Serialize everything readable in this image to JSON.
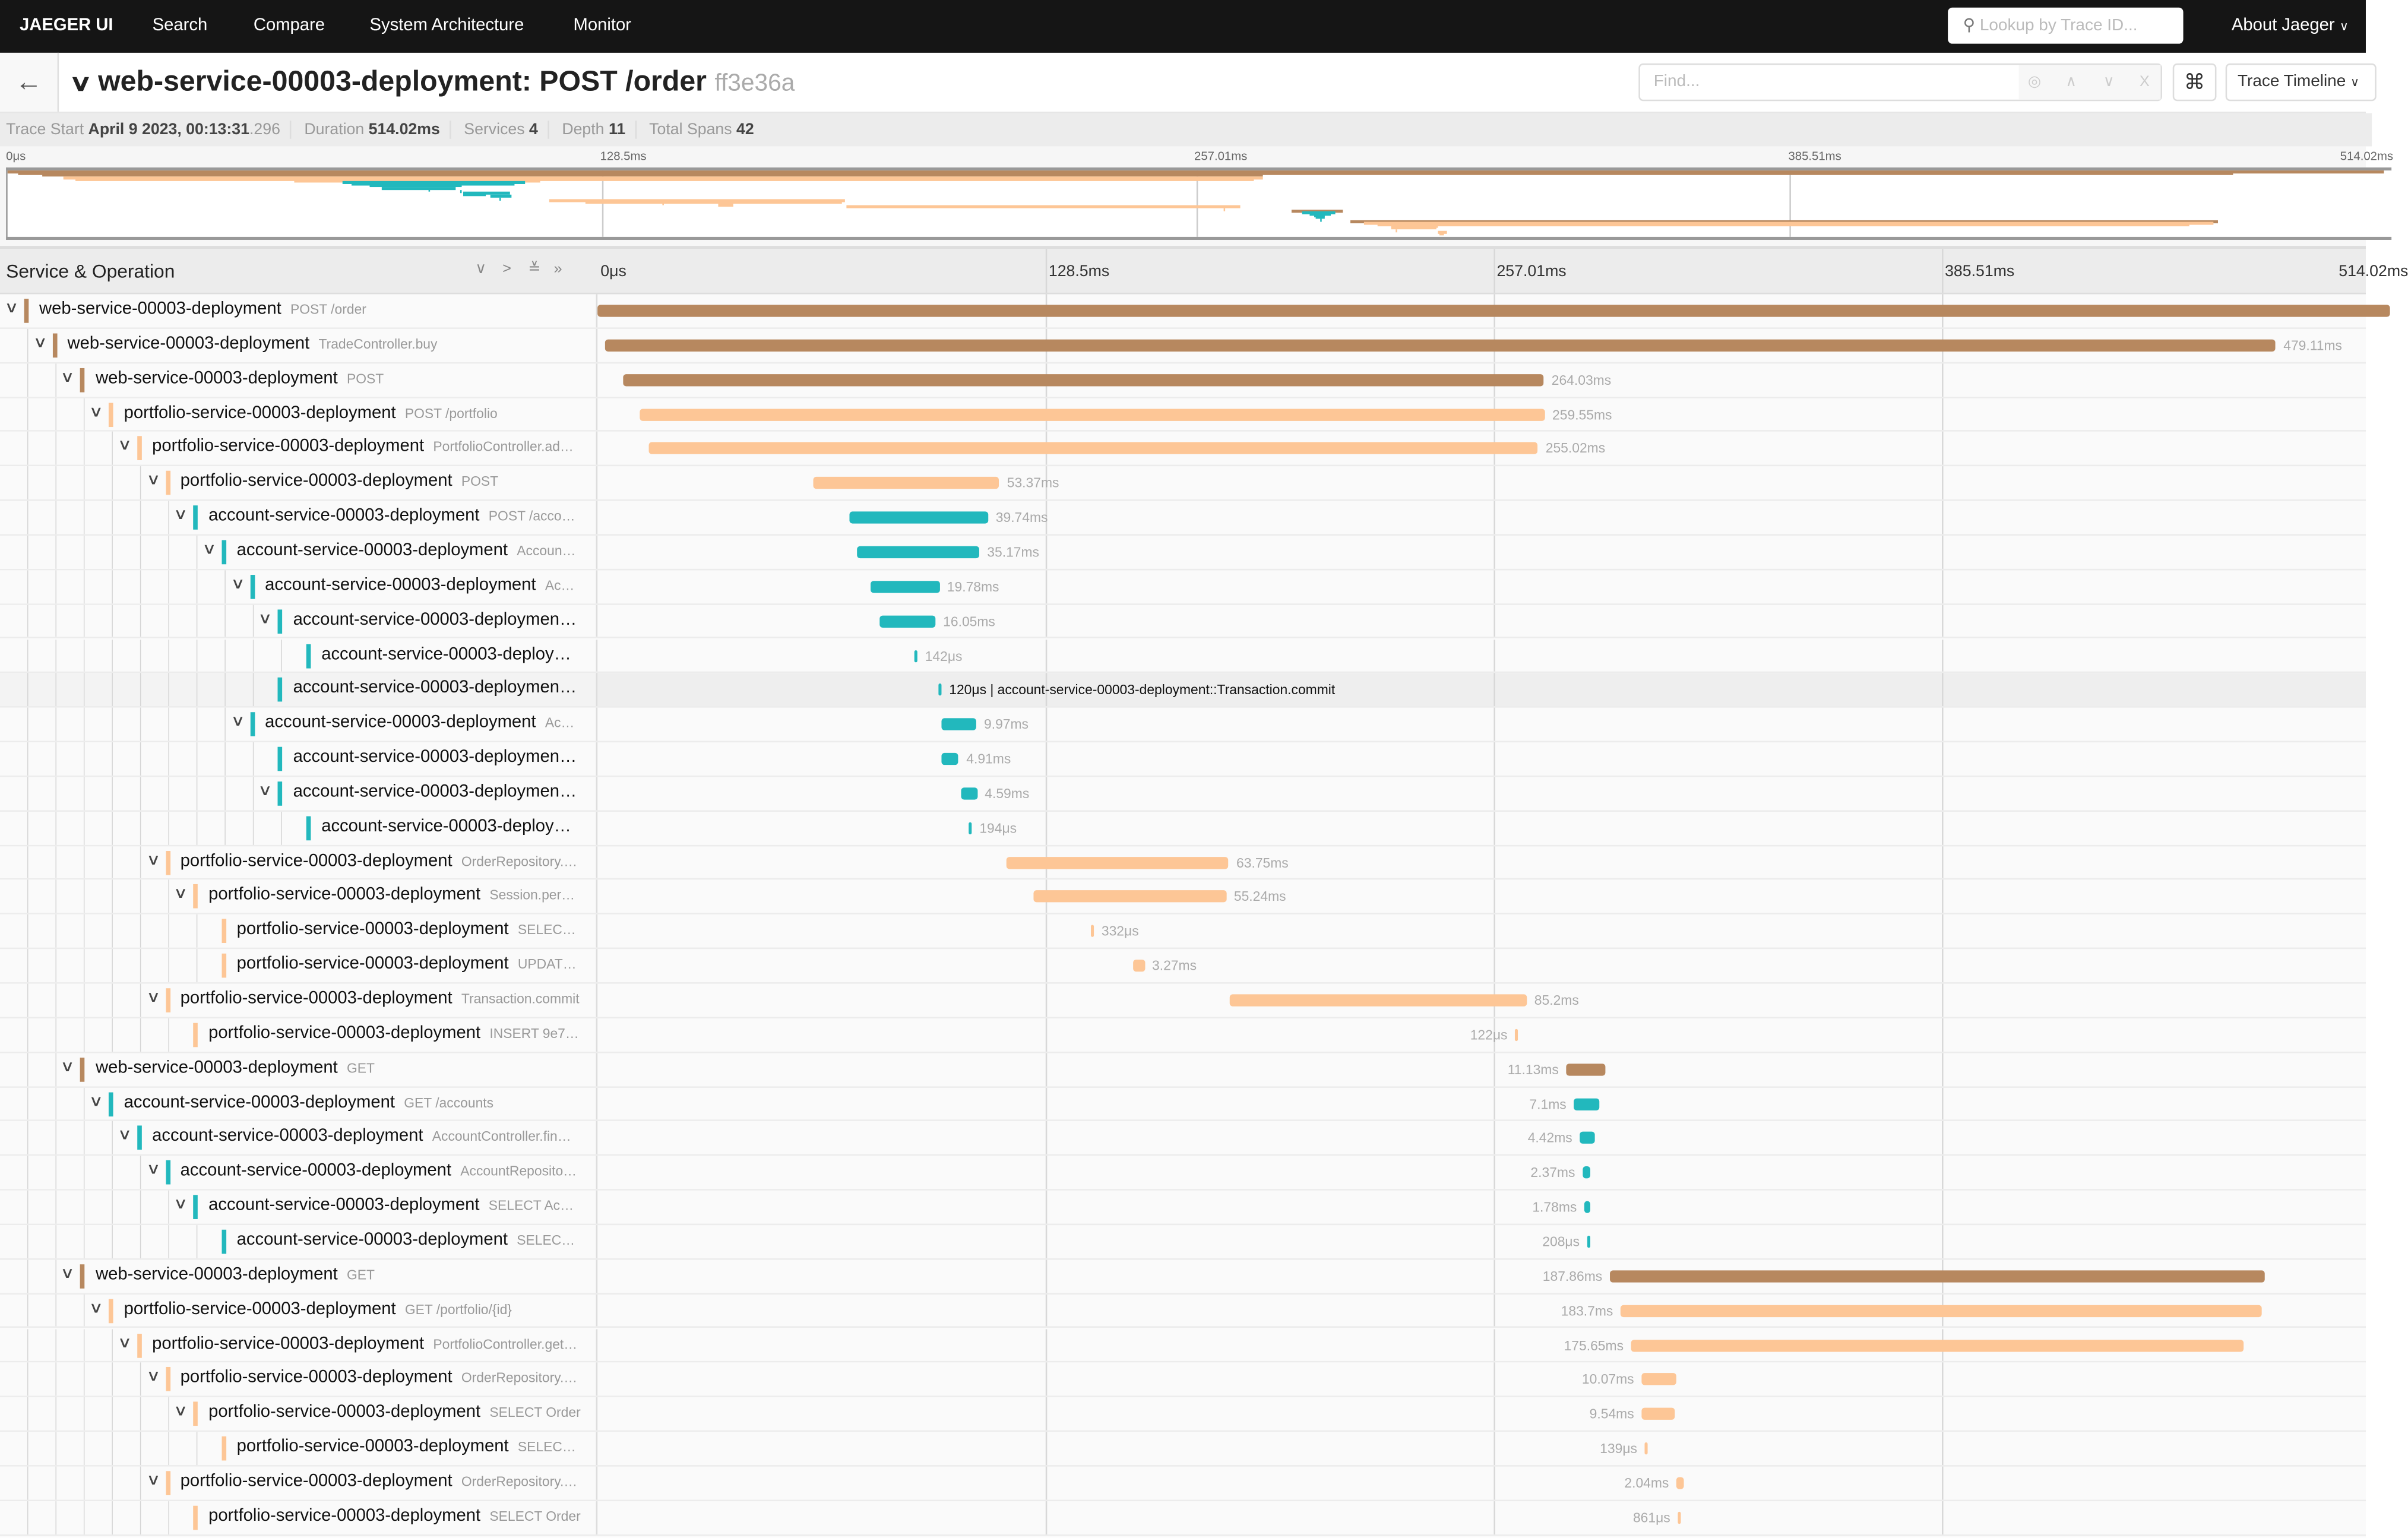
{
  "nav": {
    "brand": "JAEGER UI",
    "items": [
      "Search",
      "Compare",
      "System Architecture",
      "Monitor"
    ],
    "lookup_placeholder": "Lookup by Trace ID...",
    "about": "About Jaeger"
  },
  "header": {
    "service": "web-service-00003-deployment: POST /order",
    "trace_id": "ff3e36a",
    "find_placeholder": "Find...",
    "view_label": "Trace Timeline"
  },
  "meta": {
    "trace_start_label": "Trace Start",
    "trace_start": "April 9 2023, 00:13:31",
    "trace_start_ms": ".296",
    "duration_label": "Duration",
    "duration": "514.02ms",
    "services_label": "Services",
    "services": "4",
    "depth_label": "Depth",
    "depth": "11",
    "total_spans_label": "Total Spans",
    "total_spans": "42"
  },
  "ticks": [
    "0μs",
    "128.5ms",
    "257.01ms",
    "385.51ms",
    "514.02ms"
  ],
  "column_header": "Service & Operation",
  "total_ms": 514.02,
  "colors": {
    "web": "#B7885F",
    "portfolio": "#FDC696",
    "account": "#22B8BD"
  },
  "highlight_label": "120μs | account-service-00003-deployment::Transaction.commit",
  "spans": [
    {
      "d": 0,
      "s": "web",
      "svc": "web-service-00003-deployment",
      "op": "POST /order",
      "start": 0,
      "dur": 514.02,
      "label": ""
    },
    {
      "d": 1,
      "s": "web",
      "svc": "web-service-00003-deployment",
      "op": "TradeController.buy",
      "start": 2.2,
      "dur": 479.11,
      "label": "479.11ms"
    },
    {
      "d": 2,
      "s": "web",
      "svc": "web-service-00003-deployment",
      "op": "POST",
      "start": 7.4,
      "dur": 264.03,
      "label": "264.03ms"
    },
    {
      "d": 3,
      "s": "portfolio",
      "svc": "portfolio-service-00003-deployment",
      "op": "POST /portfolio",
      "start": 12.1,
      "dur": 259.55,
      "label": "259.55ms"
    },
    {
      "d": 4,
      "s": "portfolio",
      "svc": "portfolio-service-00003-deployment",
      "op": "PortfolioController.ad…",
      "start": 14.7,
      "dur": 255.02,
      "label": "255.02ms"
    },
    {
      "d": 5,
      "s": "portfolio",
      "svc": "portfolio-service-00003-deployment",
      "op": "POST",
      "start": 61.9,
      "dur": 53.37,
      "label": "53.37ms"
    },
    {
      "d": 6,
      "s": "account",
      "svc": "account-service-00003-deployment",
      "op": "POST /acco…",
      "start": 72.3,
      "dur": 39.74,
      "label": "39.74ms"
    },
    {
      "d": 7,
      "s": "account",
      "svc": "account-service-00003-deployment",
      "op": "Accoun…",
      "start": 74.4,
      "dur": 35.17,
      "label": "35.17ms"
    },
    {
      "d": 8,
      "s": "account",
      "svc": "account-service-00003-deployment",
      "op": "Ac…",
      "start": 78.3,
      "dur": 19.78,
      "label": "19.78ms"
    },
    {
      "d": 9,
      "s": "account",
      "svc": "account-service-00003-deploymen…",
      "op": "",
      "start": 80.9,
      "dur": 16.05,
      "label": "16.05ms"
    },
    {
      "d": 10,
      "s": "account",
      "svc": "account-service-00003-deploy…",
      "op": "",
      "start": 90.9,
      "dur": 0.142,
      "label": "142μs"
    },
    {
      "d": 9,
      "s": "account",
      "svc": "account-service-00003-deploymen…",
      "op": "",
      "start": 97.8,
      "dur": 0.12,
      "label": "120μs",
      "hl": true
    },
    {
      "d": 8,
      "s": "account",
      "svc": "account-service-00003-deployment",
      "op": "Ac…",
      "start": 98.7,
      "dur": 9.97,
      "label": "9.97ms"
    },
    {
      "d": 9,
      "s": "account",
      "svc": "account-service-00003-deploymen…",
      "op": "",
      "start": 98.7,
      "dur": 4.91,
      "label": "4.91ms"
    },
    {
      "d": 9,
      "s": "account",
      "svc": "account-service-00003-deploymen…",
      "op": "",
      "start": 104.3,
      "dur": 4.59,
      "label": "4.59ms"
    },
    {
      "d": 10,
      "s": "account",
      "svc": "account-service-00003-deploy…",
      "op": "",
      "start": 106.5,
      "dur": 0.194,
      "label": "194μs"
    },
    {
      "d": 5,
      "s": "portfolio",
      "svc": "portfolio-service-00003-deployment",
      "op": "OrderRepository.…",
      "start": 117.3,
      "dur": 63.75,
      "label": "63.75ms"
    },
    {
      "d": 6,
      "s": "portfolio",
      "svc": "portfolio-service-00003-deployment",
      "op": "Session.per…",
      "start": 125.1,
      "dur": 55.24,
      "label": "55.24ms"
    },
    {
      "d": 7,
      "s": "portfolio",
      "svc": "portfolio-service-00003-deployment",
      "op": "SELEC…",
      "start": 141.5,
      "dur": 0.332,
      "label": "332μs"
    },
    {
      "d": 7,
      "s": "portfolio",
      "svc": "portfolio-service-00003-deployment",
      "op": "UPDAT…",
      "start": 153.6,
      "dur": 3.27,
      "label": "3.27ms"
    },
    {
      "d": 5,
      "s": "portfolio",
      "svc": "portfolio-service-00003-deployment",
      "op": "Transaction.commit",
      "start": 181.3,
      "dur": 85.2,
      "label": "85.2ms"
    },
    {
      "d": 6,
      "s": "portfolio",
      "svc": "portfolio-service-00003-deployment",
      "op": "INSERT 9e7…",
      "start": 263.1,
      "dur": 0.122,
      "label": "122μs"
    },
    {
      "d": 2,
      "s": "web",
      "svc": "web-service-00003-deployment",
      "op": "GET",
      "start": 277.8,
      "dur": 11.13,
      "label": "11.13ms"
    },
    {
      "d": 3,
      "s": "account",
      "svc": "account-service-00003-deployment",
      "op": "GET /accounts",
      "start": 280.0,
      "dur": 7.1,
      "label": "7.1ms"
    },
    {
      "d": 4,
      "s": "account",
      "svc": "account-service-00003-deployment",
      "op": "AccountController.fin…",
      "start": 281.7,
      "dur": 4.42,
      "label": "4.42ms"
    },
    {
      "d": 5,
      "s": "account",
      "svc": "account-service-00003-deployment",
      "op": "AccountReposito…",
      "start": 282.5,
      "dur": 2.37,
      "label": "2.37ms"
    },
    {
      "d": 6,
      "s": "account",
      "svc": "account-service-00003-deployment",
      "op": "SELECT Ac…",
      "start": 283.0,
      "dur": 1.78,
      "label": "1.78ms"
    },
    {
      "d": 7,
      "s": "account",
      "svc": "account-service-00003-deployment",
      "op": "SELEC…",
      "start": 283.8,
      "dur": 0.208,
      "label": "208μs"
    },
    {
      "d": 2,
      "s": "web",
      "svc": "web-service-00003-deployment",
      "op": "GET",
      "start": 290.3,
      "dur": 187.86,
      "label": "187.86ms"
    },
    {
      "d": 3,
      "s": "portfolio",
      "svc": "portfolio-service-00003-deployment",
      "op": "GET /portfolio/{id}",
      "start": 293.4,
      "dur": 183.7,
      "label": "183.7ms"
    },
    {
      "d": 4,
      "s": "portfolio",
      "svc": "portfolio-service-00003-deployment",
      "op": "PortfolioController.get…",
      "start": 296.4,
      "dur": 175.65,
      "label": "175.65ms"
    },
    {
      "d": 5,
      "s": "portfolio",
      "svc": "portfolio-service-00003-deployment",
      "op": "OrderRepository.…",
      "start": 299.4,
      "dur": 10.07,
      "label": "10.07ms"
    },
    {
      "d": 6,
      "s": "portfolio",
      "svc": "portfolio-service-00003-deployment",
      "op": "SELECT Order",
      "start": 299.4,
      "dur": 9.54,
      "label": "9.54ms"
    },
    {
      "d": 7,
      "s": "portfolio",
      "svc": "portfolio-service-00003-deployment",
      "op": "SELEC…",
      "start": 300.3,
      "dur": 0.139,
      "label": "139μs"
    },
    {
      "d": 5,
      "s": "portfolio",
      "svc": "portfolio-service-00003-deployment",
      "op": "OrderRepository.…",
      "start": 309.4,
      "dur": 2.04,
      "label": "2.04ms"
    },
    {
      "d": 6,
      "s": "portfolio",
      "svc": "portfolio-service-00003-deployment",
      "op": "SELECT Order",
      "start": 309.8,
      "dur": 0.861,
      "label": "861μs"
    }
  ]
}
